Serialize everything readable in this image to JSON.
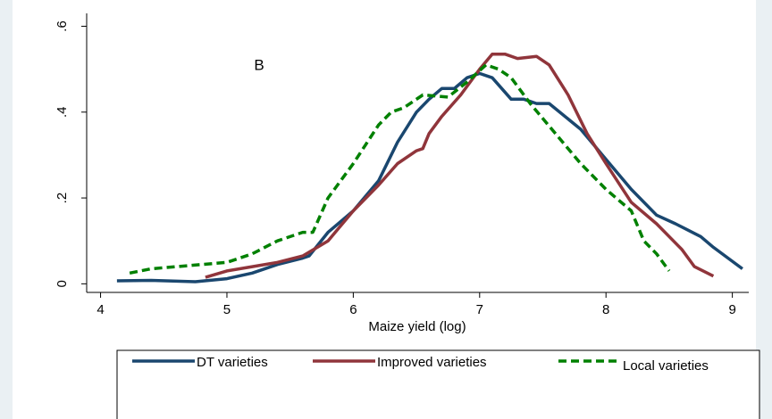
{
  "chart_data": {
    "type": "line",
    "annotations": [
      "B"
    ],
    "xlabel": "Maize yield (log)",
    "xlim": [
      3.89,
      9.13
    ],
    "xticks": [
      4,
      5,
      6,
      7,
      8,
      9
    ],
    "ylim": [
      -0.02,
      0.63
    ],
    "yticks": [
      0,
      {
        "value": 0.2,
        "label": ".2"
      },
      {
        "value": 0.4,
        "label": ".4"
      },
      {
        "value": 0.6,
        "label": ".6"
      }
    ],
    "series": [
      {
        "name": "DT varieties",
        "color": "#1a476f",
        "dash": "solid",
        "x": [
          4.13,
          4.4,
          4.75,
          5.0,
          5.2,
          5.4,
          5.6,
          5.65,
          5.8,
          6.0,
          6.2,
          6.35,
          6.5,
          6.6,
          6.7,
          6.8,
          6.9,
          7.0,
          7.1,
          7.25,
          7.35,
          7.45,
          7.55,
          7.8,
          8.0,
          8.2,
          8.4,
          8.55,
          8.75,
          8.85,
          9.08
        ],
        "values": [
          0.007,
          0.008,
          0.005,
          0.012,
          0.025,
          0.045,
          0.06,
          0.065,
          0.12,
          0.17,
          0.24,
          0.33,
          0.4,
          0.43,
          0.455,
          0.455,
          0.48,
          0.49,
          0.48,
          0.43,
          0.43,
          0.42,
          0.42,
          0.36,
          0.29,
          0.22,
          0.16,
          0.14,
          0.11,
          0.085,
          0.035
        ]
      },
      {
        "name": "Improved varieties",
        "color": "#90353b",
        "dash": "solid",
        "x": [
          4.83,
          5.0,
          5.2,
          5.4,
          5.6,
          5.8,
          6.0,
          6.2,
          6.35,
          6.5,
          6.55,
          6.6,
          6.7,
          6.85,
          7.0,
          7.1,
          7.2,
          7.3,
          7.45,
          7.55,
          7.7,
          7.85,
          8.0,
          8.2,
          8.4,
          8.6,
          8.7,
          8.85
        ],
        "values": [
          0.015,
          0.03,
          0.04,
          0.05,
          0.065,
          0.1,
          0.17,
          0.23,
          0.28,
          0.31,
          0.315,
          0.35,
          0.39,
          0.44,
          0.5,
          0.535,
          0.535,
          0.525,
          0.53,
          0.51,
          0.44,
          0.35,
          0.28,
          0.19,
          0.14,
          0.08,
          0.04,
          0.018
        ]
      },
      {
        "name": "Local varieties",
        "color": "#008000",
        "dash": "dashed",
        "x": [
          4.23,
          4.4,
          4.6,
          4.8,
          5.0,
          5.2,
          5.4,
          5.6,
          5.68,
          5.8,
          6.0,
          6.2,
          6.3,
          6.4,
          6.55,
          6.75,
          6.9,
          7.05,
          7.15,
          7.25,
          7.4,
          7.6,
          7.8,
          8.0,
          8.2,
          8.3,
          8.4,
          8.5
        ],
        "values": [
          0.025,
          0.035,
          0.04,
          0.045,
          0.05,
          0.07,
          0.1,
          0.12,
          0.12,
          0.2,
          0.28,
          0.37,
          0.4,
          0.41,
          0.44,
          0.435,
          0.47,
          0.51,
          0.5,
          0.48,
          0.42,
          0.35,
          0.28,
          0.22,
          0.17,
          0.1,
          0.07,
          0.03
        ]
      }
    ]
  }
}
